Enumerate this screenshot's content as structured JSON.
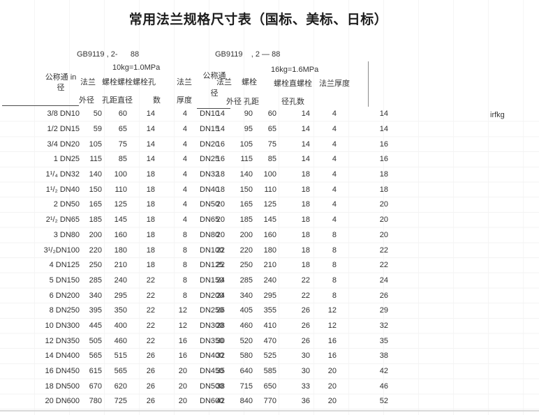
{
  "title": "常用法兰规格尺寸表（国标、美标、日标）",
  "stray_text": "irfkg",
  "left_table": {
    "standard": "GB9119 , 2-      88",
    "pressure": "10kg=1.0MPa",
    "headers": {
      "name_line1": "公称通 in",
      "name_line2": "径",
      "flange_line1": "法兰",
      "flange_line2": "外径",
      "bolt_line1": "螺栓螺栓螺栓孔",
      "bolt_line2": "孔距直径",
      "bolt_count": "数",
      "thickness_line1": "法兰",
      "thickness_line2": "厚度"
    },
    "rows": [
      [
        "3/8 DN10",
        "50",
        "60",
        "14",
        "4",
        "14"
      ],
      [
        "1/2 DN15",
        "59",
        "65",
        "14",
        "4",
        "14"
      ],
      [
        "3/4 DN20",
        "105",
        "75",
        "14",
        "4",
        "16"
      ],
      [
        "1 DN25",
        "115",
        "85",
        "14",
        "4",
        "16"
      ],
      [
        "1¹/₄ DN32",
        "140",
        "100",
        "18",
        "4",
        "18"
      ],
      [
        "1¹/₂ DN40",
        "150",
        "110",
        "18",
        "4",
        "18"
      ],
      [
        "2 DN50",
        "165",
        "125",
        "18",
        "4",
        "20"
      ],
      [
        "2¹/₂ DN65",
        "185",
        "145",
        "18",
        "4",
        "20"
      ],
      [
        "3 DN80",
        "200",
        "160",
        "18",
        "8",
        "20"
      ],
      [
        "3¹/₂DN100",
        "220",
        "180",
        "18",
        "8",
        "22"
      ],
      [
        "4 DN125",
        "250",
        "210",
        "18",
        "8",
        "22"
      ],
      [
        "5 DN150",
        "285",
        "240",
        "22",
        "8",
        "24"
      ],
      [
        "6 DN200",
        "340",
        "295",
        "22",
        "8",
        "24"
      ],
      [
        "8 DN250",
        "395",
        "350",
        "22",
        "12",
        "26"
      ],
      [
        "10 DN300",
        "445",
        "400",
        "22",
        "12",
        "28"
      ],
      [
        "12 DN350",
        "505",
        "460",
        "22",
        "16",
        "30"
      ],
      [
        "14 DN400",
        "565",
        "515",
        "26",
        "16",
        "32"
      ],
      [
        "16 DN450",
        "615",
        "565",
        "26",
        "20",
        "35"
      ],
      [
        "18 DN500",
        "670",
        "620",
        "26",
        "20",
        "38"
      ],
      [
        "20 DN600",
        "780",
        "725",
        "26",
        "20",
        "42"
      ]
    ]
  },
  "right_table": {
    "standard": "GB9119    , 2 — 88",
    "pressure": "16kg=1.6MPa",
    "headers": {
      "name_line1": "公称通",
      "name_line2": "径",
      "flange_line1": "法兰",
      "flange_line2": "外径",
      "bolt_line1": "螺栓",
      "bolt_line2": "孔距",
      "bolt2_line1": "螺栓直螺栓",
      "bolt2_line2": "径孔数",
      "thickness": "法兰厚度"
    },
    "rows": [
      [
        "DN10",
        "90",
        "60",
        "14",
        "4",
        "14"
      ],
      [
        "DN15",
        "95",
        "65",
        "14",
        "4",
        "14"
      ],
      [
        "DN20",
        "105",
        "75",
        "14",
        "4",
        "16"
      ],
      [
        "DN25",
        "115",
        "85",
        "14",
        "4",
        "16"
      ],
      [
        "DN32",
        "140",
        "100",
        "18",
        "4",
        "18"
      ],
      [
        "DN40",
        "150",
        "110",
        "18",
        "4",
        "18"
      ],
      [
        "DN50",
        "165",
        "125",
        "18",
        "4",
        "20"
      ],
      [
        "DN65",
        "185",
        "145",
        "18",
        "4",
        "20"
      ],
      [
        "DN80",
        "200",
        "160",
        "18",
        "8",
        "20"
      ],
      [
        "DN100",
        "220",
        "180",
        "18",
        "8",
        "22"
      ],
      [
        "DN125",
        "250",
        "210",
        "18",
        "8",
        "22"
      ],
      [
        "DN150",
        "285",
        "240",
        "22",
        "8",
        "24"
      ],
      [
        "DN200",
        "340",
        "295",
        "22",
        "8",
        "26"
      ],
      [
        "DN250",
        "405",
        "355",
        "26",
        "12",
        "29"
      ],
      [
        "DN300",
        "460",
        "410",
        "26",
        "12",
        "32"
      ],
      [
        "DN350",
        "520",
        "470",
        "26",
        "16",
        "35"
      ],
      [
        "DN400",
        "580",
        "525",
        "30",
        "16",
        "38"
      ],
      [
        "DN450",
        "640",
        "585",
        "30",
        "20",
        "42"
      ],
      [
        "DN500",
        "715",
        "650",
        "33",
        "20",
        "46"
      ],
      [
        "DN600",
        "840",
        "770",
        "36",
        "20",
        "52"
      ]
    ]
  }
}
